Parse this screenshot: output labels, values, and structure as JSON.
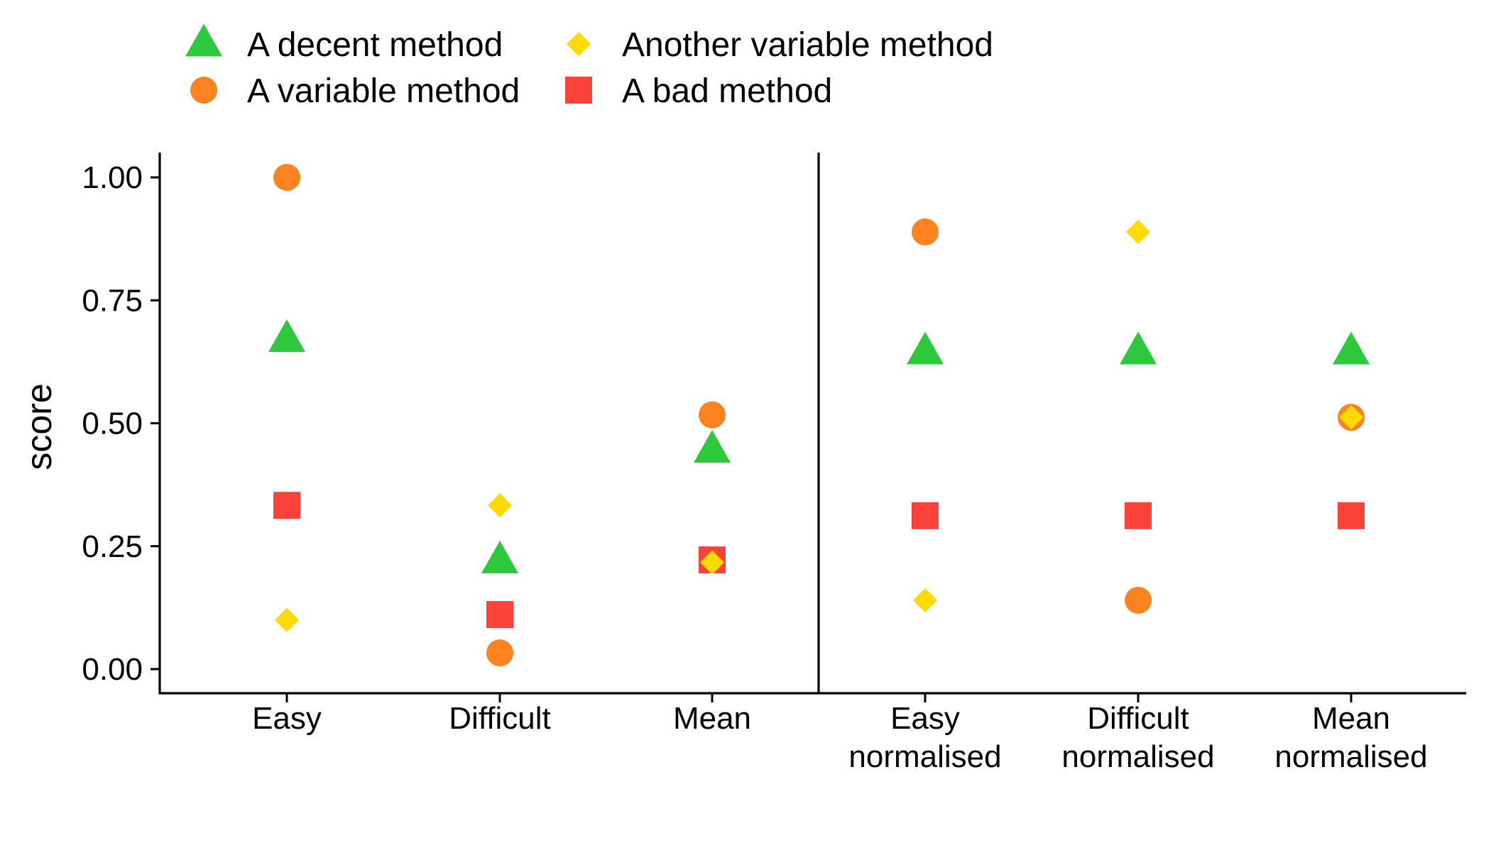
{
  "chart_data": {
    "type": "scatter",
    "ylabel": "score",
    "ylim": [
      0,
      1
    ],
    "yticks": [
      "0.00",
      "0.25",
      "0.50",
      "0.75",
      "1.00"
    ],
    "ytick_values": [
      0,
      0.25,
      0.5,
      0.75,
      1.0
    ],
    "categories": [
      [
        "Easy"
      ],
      [
        "Difficult"
      ],
      [
        "Mean"
      ],
      [
        "Easy",
        "normalised"
      ],
      [
        "Difficult",
        "normalised"
      ],
      [
        "Mean",
        "normalised"
      ]
    ],
    "divider_after_category": 3,
    "legend_placement": "top-left",
    "series": [
      {
        "name": "A decent method",
        "shape": "triangle",
        "color": "#2DC83C",
        "values": [
          0.67,
          0.22,
          0.445,
          0.645,
          0.645,
          0.645
        ]
      },
      {
        "name": "A variable method",
        "shape": "circle",
        "color": "#FD8320",
        "values": [
          1.0,
          0.033,
          0.517,
          0.889,
          0.14,
          0.512
        ]
      },
      {
        "name": "Another variable method",
        "shape": "diamond",
        "color": "#FDDA02",
        "values": [
          0.1,
          0.333,
          0.217,
          0.14,
          0.889,
          0.512
        ]
      },
      {
        "name": "A bad method",
        "shape": "square",
        "color": "#FA423A",
        "values": [
          0.333,
          0.111,
          0.222,
          0.312,
          0.312,
          0.312
        ]
      }
    ]
  }
}
